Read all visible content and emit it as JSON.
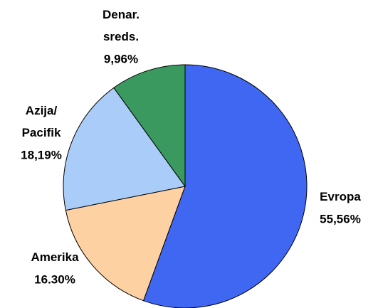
{
  "chart_data": {
    "type": "pie",
    "categories": [
      "Evropa",
      "Amerika",
      "Azija/ Pacifik",
      "Denar. sreds."
    ],
    "values": [
      55.56,
      16.3,
      18.19,
      9.96
    ],
    "value_labels": [
      "55,56%",
      "16.30%",
      "18,19%",
      "9,96%"
    ],
    "colors": [
      "#3f67f2",
      "#fdd1a2",
      "#a9cdf8",
      "#39995f"
    ]
  }
}
